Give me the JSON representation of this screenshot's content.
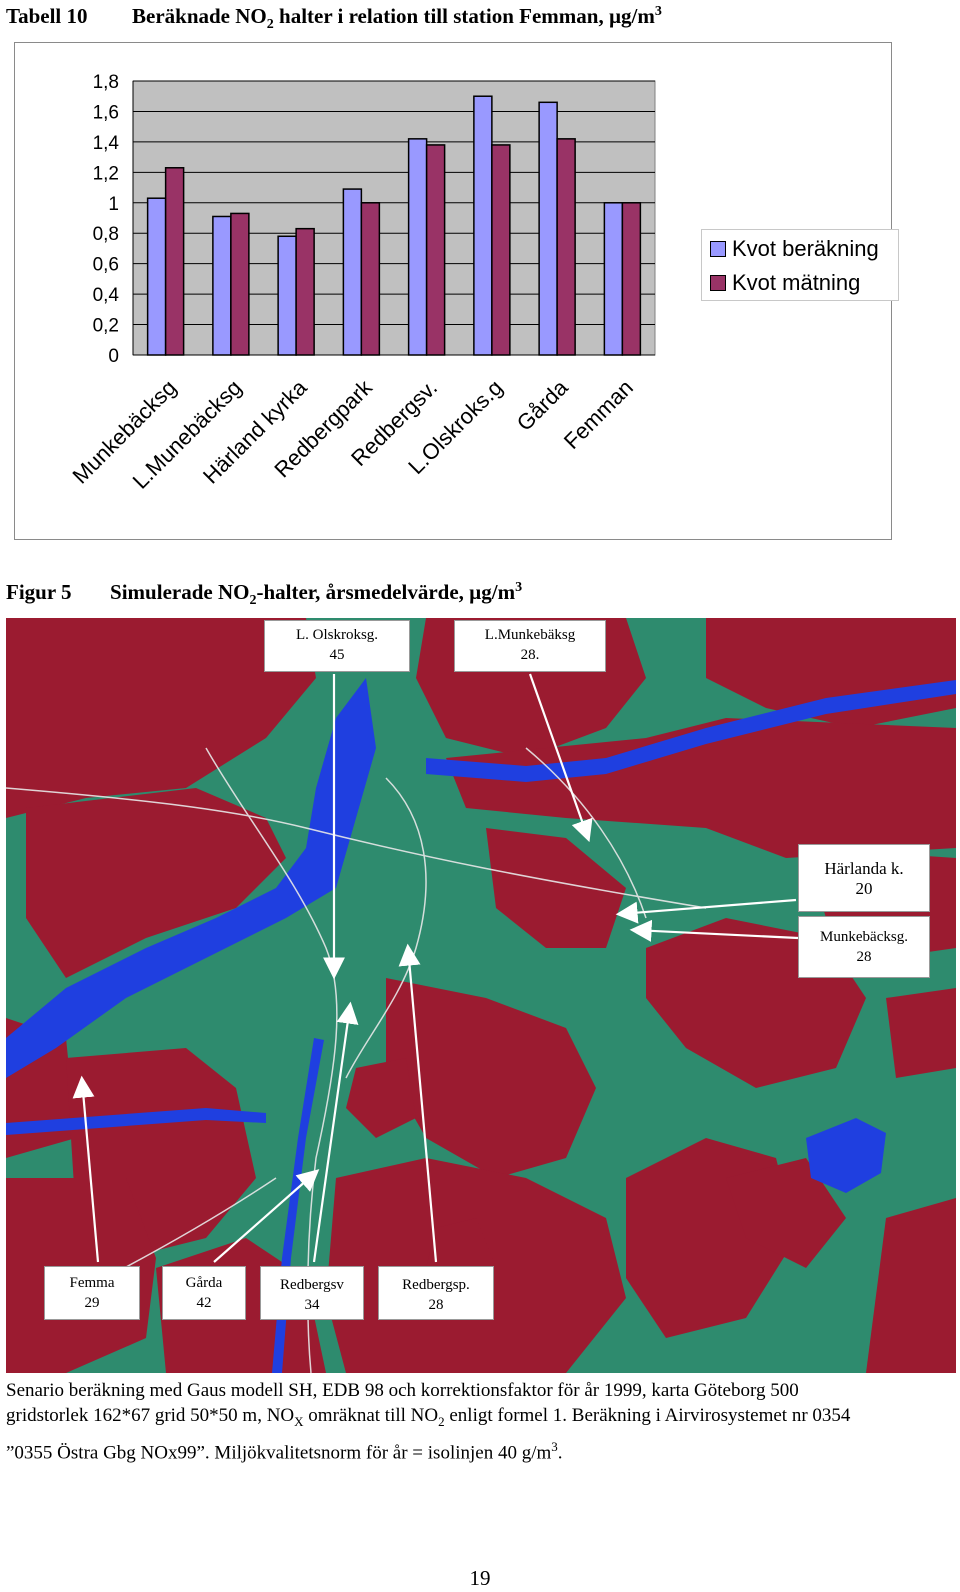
{
  "table_heading": {
    "number": "Tabell 10",
    "title_pre": "Beräknade NO",
    "title_sub": "2",
    "title_post": " halter i relation till station Femman, µg/m",
    "title_sup": "3"
  },
  "chart_data": {
    "type": "bar",
    "categories": [
      "Munkebäcksg",
      "L.Munebäcksg",
      "Härland kyrka",
      "Redbergpark",
      "Redbergsv.",
      "L.Olskroks.g",
      "Gårda",
      "Femman"
    ],
    "series": [
      {
        "name": "Kvot beräkning",
        "color": "#9999ff",
        "values": [
          1.03,
          0.91,
          0.78,
          1.09,
          1.42,
          1.7,
          1.66,
          1.0
        ]
      },
      {
        "name": "Kvot mätning",
        "color": "#993366",
        "values": [
          1.23,
          0.93,
          0.83,
          1.0,
          1.38,
          1.38,
          1.42,
          1.0
        ]
      }
    ],
    "ylim": [
      0,
      1.8
    ],
    "yticks": [
      "0",
      "0,2",
      "0,4",
      "0,6",
      "0,8",
      "1",
      "1,2",
      "1,4",
      "1,6",
      "1,8"
    ],
    "plot_background": "#c0c0c0",
    "grid": true,
    "legend_position": "right"
  },
  "figure_heading": {
    "number": "Figur 5",
    "title_pre": "Simulerade NO",
    "title_sub": "2",
    "title_post": "-halter, årsmedelvärde, µg/m",
    "title_sup": "3"
  },
  "map": {
    "colors": {
      "ground": "#2e8b6e",
      "built": "#9b1b30",
      "water": "#1f3fe0"
    },
    "labels": [
      {
        "name": "L. Olskroksg.",
        "value": "45"
      },
      {
        "name": "L.Munkebäksg",
        "value": "28."
      },
      {
        "name": "Härlanda k.",
        "value": "20"
      },
      {
        "name": "Munkebäcksg.",
        "value": "28"
      },
      {
        "name": "Femma",
        "value": "29"
      },
      {
        "name": "Gårda",
        "value": "42"
      },
      {
        "name": "Redbergsv",
        "value": "34"
      },
      {
        "name": "Redbergsp.",
        "value": "28"
      }
    ]
  },
  "caption": {
    "line1": "Senario beräkning med Gaus modell SH, EDB 98 och korrektionsfaktor för år 1999, karta Göteborg 500",
    "line2_a": "gridstorlek 162*67 grid 50*50 m, NO",
    "line2_sub_x": "X",
    "line2_b": " omräknat till NO",
    "line2_sub_2": "2",
    "line2_c": " enligt formel 1. Beräkning i Airvirosystemet nr 0354",
    "line3": "”0355 Östra Gbg NOx99”. Miljökvalitetsnorm för år = isolinjen 40    g/m",
    "line3_sup": "3",
    "line3_end": "."
  },
  "page_number": "19"
}
